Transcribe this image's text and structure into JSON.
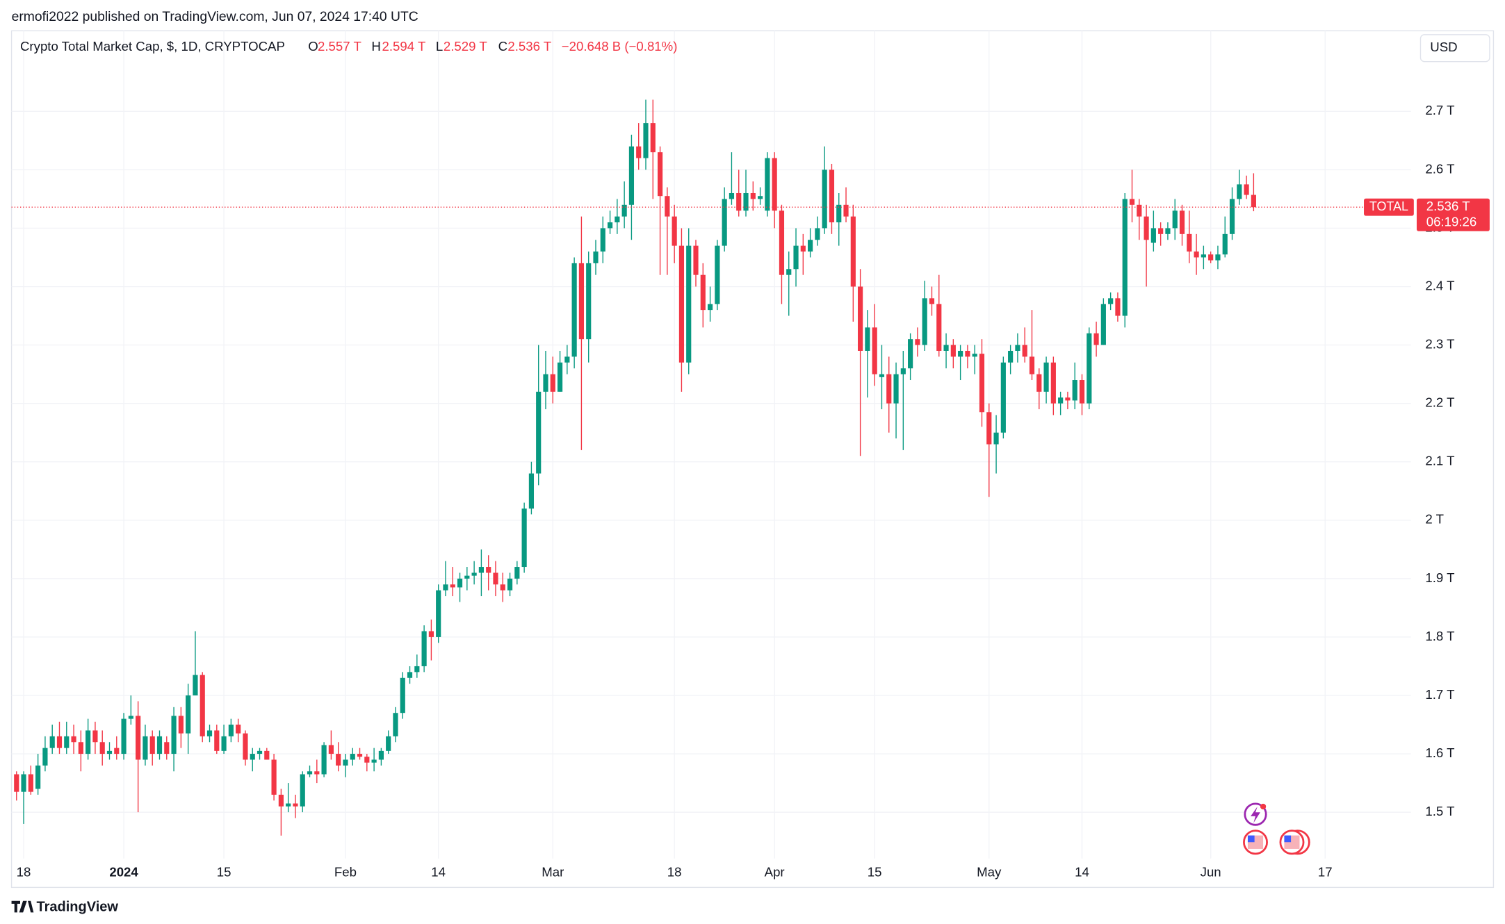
{
  "header": {
    "published": "ermofi2022 published on TradingView.com, Jun 07, 2024 17:40 UTC",
    "symbol": "Crypto Total Market Cap, $, 1D, CRYPTOCAP",
    "ohlc": [
      {
        "key": "O",
        "value": "2.557 T"
      },
      {
        "key": "H",
        "value": "2.594 T"
      },
      {
        "key": "L",
        "value": "2.529 T"
      },
      {
        "key": "C",
        "value": "2.536 T"
      }
    ],
    "change": "−20.648 B (−0.81%)",
    "currency": "USD"
  },
  "price_tag": {
    "name": "TOTAL",
    "price": "2.536 T",
    "countdown": "06:19:26"
  },
  "footer": {
    "brand": "TradingView"
  },
  "chart_data": {
    "type": "candlestick",
    "up_color": "#089981",
    "down_color": "#f23645",
    "grid": true,
    "categories": [
      "Dec 17",
      "Dec 18",
      "Dec 19",
      "Dec 20",
      "Dec 21",
      "Dec 22",
      "Dec 23",
      "Dec 24",
      "Dec 25",
      "Dec 26",
      "Dec 27",
      "Dec 28",
      "Dec 29",
      "Dec 30",
      "Dec 31",
      "Jan 1",
      "Jan 2",
      "Jan 3",
      "Jan 4",
      "Jan 5",
      "Jan 6",
      "Jan 7",
      "Jan 8",
      "Jan 9",
      "Jan 10",
      "Jan 11",
      "Jan 12",
      "Jan 13",
      "Jan 14",
      "Jan 15",
      "Jan 16",
      "Jan 17",
      "Jan 18",
      "Jan 19",
      "Jan 20",
      "Jan 21",
      "Jan 22",
      "Jan 23",
      "Jan 24",
      "Jan 25",
      "Jan 26",
      "Jan 27",
      "Jan 28",
      "Jan 29",
      "Jan 30",
      "Jan 31",
      "Feb 1",
      "Feb 2",
      "Feb 3",
      "Feb 4",
      "Feb 5",
      "Feb 6",
      "Feb 7",
      "Feb 8",
      "Feb 9",
      "Feb 10",
      "Feb 11",
      "Feb 12",
      "Feb 13",
      "Feb 14",
      "Feb 15",
      "Feb 16",
      "Feb 17",
      "Feb 18",
      "Feb 19",
      "Feb 20",
      "Feb 21",
      "Feb 22",
      "Feb 23",
      "Feb 24",
      "Feb 25",
      "Feb 26",
      "Feb 27",
      "Feb 28",
      "Feb 29",
      "Mar 1",
      "Mar 2",
      "Mar 3",
      "Mar 4",
      "Mar 5",
      "Mar 6",
      "Mar 7",
      "Mar 8",
      "Mar 9",
      "Mar 10",
      "Mar 11",
      "Mar 12",
      "Mar 13",
      "Mar 14",
      "Mar 15",
      "Mar 16",
      "Mar 17",
      "Mar 18",
      "Mar 19",
      "Mar 20",
      "Mar 21",
      "Mar 22",
      "Mar 23",
      "Mar 24",
      "Mar 25",
      "Mar 26",
      "Mar 27",
      "Mar 28",
      "Mar 29",
      "Mar 30",
      "Mar 31",
      "Apr 1",
      "Apr 2",
      "Apr 3",
      "Apr 4",
      "Apr 5",
      "Apr 6",
      "Apr 7",
      "Apr 8",
      "Apr 9",
      "Apr 10",
      "Apr 11",
      "Apr 12",
      "Apr 13",
      "Apr 14",
      "Apr 15",
      "Apr 16",
      "Apr 17",
      "Apr 18",
      "Apr 19",
      "Apr 20",
      "Apr 21",
      "Apr 22",
      "Apr 23",
      "Apr 24",
      "Apr 25",
      "Apr 26",
      "Apr 27",
      "Apr 28",
      "Apr 29",
      "Apr 30",
      "May 1",
      "May 2",
      "May 3",
      "May 4",
      "May 5",
      "May 6",
      "May 7",
      "May 8",
      "May 9",
      "May 10",
      "May 11",
      "May 12",
      "May 13",
      "May 14",
      "May 15",
      "May 16",
      "May 17",
      "May 18",
      "May 19",
      "May 20",
      "May 21",
      "May 22",
      "May 23",
      "May 24",
      "May 25",
      "May 26",
      "May 27",
      "May 28",
      "May 29",
      "May 30",
      "May 31",
      "Jun 1",
      "Jun 2",
      "Jun 3",
      "Jun 4",
      "Jun 5",
      "Jun 6",
      "Jun 7"
    ],
    "open": [
      1.565,
      1.535,
      1.565,
      1.54,
      1.58,
      1.61,
      1.63,
      1.61,
      1.63,
      1.62,
      1.6,
      1.64,
      1.62,
      1.6,
      1.61,
      1.6,
      1.66,
      1.665,
      1.59,
      1.63,
      1.6,
      1.62,
      1.6,
      1.665,
      1.635,
      1.7,
      1.735,
      1.63,
      1.64,
      1.605,
      1.63,
      1.65,
      1.635,
      1.59,
      1.6,
      1.605,
      1.59,
      1.53,
      1.51,
      1.515,
      1.51,
      1.565,
      1.57,
      1.565,
      1.615,
      1.6,
      1.58,
      1.59,
      1.6,
      1.595,
      1.585,
      1.59,
      1.605,
      1.63,
      1.67,
      1.73,
      1.74,
      1.75,
      1.81,
      1.8,
      1.88,
      1.89,
      1.885,
      1.9,
      1.905,
      1.91,
      1.92,
      1.91,
      1.89,
      1.88,
      1.9,
      1.92,
      2.02,
      2.08,
      2.22,
      2.25,
      2.22,
      2.27,
      2.28,
      2.44,
      2.31,
      2.44,
      2.46,
      2.5,
      2.51,
      2.52,
      2.54,
      2.64,
      2.62,
      2.68,
      2.63,
      2.555,
      2.52,
      2.47,
      2.27,
      2.47,
      2.42,
      2.36,
      2.37,
      2.47,
      2.55,
      2.56,
      2.53,
      2.56,
      2.55,
      2.53,
      2.62,
      2.53,
      2.42,
      2.43,
      2.47,
      2.46,
      2.48,
      2.5,
      2.6,
      2.51,
      2.54,
      2.52,
      2.4,
      2.29,
      2.33,
      2.245,
      2.25,
      2.2,
      2.25,
      2.26,
      2.31,
      2.3,
      2.38,
      2.37,
      2.29,
      2.3,
      2.28,
      2.29,
      2.28,
      2.285,
      2.185,
      2.13,
      2.15,
      2.27,
      2.29,
      2.3,
      2.28,
      2.25,
      2.22,
      2.27,
      2.2,
      2.21,
      2.205,
      2.24,
      2.2,
      2.32,
      2.3,
      2.37,
      2.38,
      2.35,
      2.55,
      2.54,
      2.52,
      2.475,
      2.5,
      2.49,
      2.5,
      2.53,
      2.49,
      2.46,
      2.45,
      2.455,
      2.445,
      2.455,
      2.49,
      2.55,
      2.575,
      2.557
    ],
    "high": [
      1.57,
      1.57,
      1.58,
      1.6,
      1.63,
      1.65,
      1.655,
      1.655,
      1.65,
      1.64,
      1.66,
      1.655,
      1.64,
      1.62,
      1.63,
      1.67,
      1.7,
      1.69,
      1.65,
      1.64,
      1.64,
      1.63,
      1.68,
      1.68,
      1.72,
      1.81,
      1.74,
      1.65,
      1.65,
      1.65,
      1.66,
      1.66,
      1.64,
      1.61,
      1.61,
      1.61,
      1.6,
      1.54,
      1.55,
      1.53,
      1.57,
      1.58,
      1.59,
      1.62,
      1.64,
      1.62,
      1.6,
      1.61,
      1.61,
      1.6,
      1.61,
      1.61,
      1.64,
      1.68,
      1.74,
      1.75,
      1.77,
      1.82,
      1.83,
      1.89,
      1.93,
      1.92,
      1.91,
      1.92,
      1.93,
      1.95,
      1.94,
      1.93,
      1.91,
      1.91,
      1.93,
      2.03,
      2.1,
      2.3,
      2.29,
      2.28,
      2.29,
      2.3,
      2.45,
      2.52,
      2.46,
      2.48,
      2.52,
      2.53,
      2.55,
      2.58,
      2.66,
      2.68,
      2.72,
      2.72,
      2.64,
      2.57,
      2.54,
      2.5,
      2.5,
      2.48,
      2.44,
      2.4,
      2.48,
      2.57,
      2.63,
      2.6,
      2.6,
      2.58,
      2.57,
      2.63,
      2.63,
      2.54,
      2.46,
      2.5,
      2.49,
      2.5,
      2.52,
      2.64,
      2.61,
      2.56,
      2.57,
      2.54,
      2.43,
      2.36,
      2.37,
      2.3,
      2.28,
      2.27,
      2.29,
      2.32,
      2.33,
      2.41,
      2.4,
      2.42,
      2.32,
      2.31,
      2.3,
      2.3,
      2.3,
      2.31,
      2.2,
      2.18,
      2.28,
      2.3,
      2.32,
      2.33,
      2.36,
      2.26,
      2.28,
      2.28,
      2.22,
      2.22,
      2.27,
      2.25,
      2.33,
      2.34,
      2.38,
      2.39,
      2.39,
      2.56,
      2.6,
      2.55,
      2.54,
      2.53,
      2.51,
      2.51,
      2.55,
      2.54,
      2.53,
      2.49,
      2.47,
      2.46,
      2.47,
      2.52,
      2.57,
      2.6,
      2.59,
      2.594
    ],
    "low": [
      1.52,
      1.48,
      1.53,
      1.53,
      1.57,
      1.6,
      1.6,
      1.6,
      1.6,
      1.57,
      1.59,
      1.6,
      1.58,
      1.59,
      1.59,
      1.59,
      1.65,
      1.5,
      1.58,
      1.58,
      1.59,
      1.59,
      1.57,
      1.61,
      1.6,
      1.7,
      1.62,
      1.62,
      1.6,
      1.6,
      1.62,
      1.62,
      1.58,
      1.57,
      1.59,
      1.59,
      1.52,
      1.46,
      1.5,
      1.49,
      1.5,
      1.56,
      1.55,
      1.56,
      1.59,
      1.57,
      1.56,
      1.58,
      1.59,
      1.57,
      1.57,
      1.58,
      1.6,
      1.62,
      1.66,
      1.72,
      1.73,
      1.74,
      1.76,
      1.79,
      1.87,
      1.87,
      1.86,
      1.88,
      1.89,
      1.87,
      1.88,
      1.87,
      1.86,
      1.87,
      1.89,
      1.91,
      2.01,
      2.06,
      2.19,
      2.2,
      2.22,
      2.25,
      2.26,
      2.12,
      2.27,
      2.42,
      2.44,
      2.49,
      2.49,
      2.5,
      2.48,
      2.6,
      2.6,
      2.55,
      2.42,
      2.42,
      2.44,
      2.22,
      2.25,
      2.4,
      2.33,
      2.34,
      2.36,
      2.46,
      2.54,
      2.52,
      2.52,
      2.53,
      2.54,
      2.52,
      2.5,
      2.37,
      2.35,
      2.4,
      2.42,
      2.45,
      2.47,
      2.49,
      2.49,
      2.47,
      2.51,
      2.34,
      2.11,
      2.21,
      2.23,
      2.19,
      2.15,
      2.14,
      2.12,
      2.24,
      2.28,
      2.29,
      2.35,
      2.28,
      2.26,
      2.26,
      2.24,
      2.26,
      2.25,
      2.16,
      2.04,
      2.08,
      2.14,
      2.25,
      2.27,
      2.27,
      2.24,
      2.19,
      2.2,
      2.18,
      2.18,
      2.19,
      2.19,
      2.18,
      2.19,
      2.28,
      2.3,
      2.36,
      2.34,
      2.33,
      2.51,
      2.48,
      2.4,
      2.46,
      2.47,
      2.48,
      2.48,
      2.47,
      2.44,
      2.42,
      2.43,
      2.44,
      2.43,
      2.45,
      2.48,
      2.54,
      2.55,
      2.529
    ],
    "close": [
      1.535,
      1.565,
      1.535,
      1.58,
      1.61,
      1.63,
      1.61,
      1.63,
      1.62,
      1.6,
      1.64,
      1.62,
      1.6,
      1.605,
      1.6,
      1.66,
      1.665,
      1.59,
      1.63,
      1.6,
      1.63,
      1.6,
      1.665,
      1.635,
      1.7,
      1.735,
      1.63,
      1.64,
      1.605,
      1.63,
      1.65,
      1.635,
      1.59,
      1.6,
      1.605,
      1.59,
      1.53,
      1.51,
      1.515,
      1.51,
      1.565,
      1.57,
      1.565,
      1.615,
      1.6,
      1.58,
      1.59,
      1.6,
      1.595,
      1.585,
      1.59,
      1.605,
      1.63,
      1.67,
      1.73,
      1.74,
      1.75,
      1.81,
      1.8,
      1.88,
      1.89,
      1.885,
      1.9,
      1.905,
      1.91,
      1.92,
      1.91,
      1.89,
      1.88,
      1.9,
      1.92,
      2.02,
      2.08,
      2.22,
      2.25,
      2.22,
      2.27,
      2.28,
      2.44,
      2.31,
      2.44,
      2.46,
      2.5,
      2.51,
      2.52,
      2.54,
      2.64,
      2.62,
      2.68,
      2.63,
      2.555,
      2.52,
      2.47,
      2.27,
      2.47,
      2.42,
      2.36,
      2.37,
      2.47,
      2.55,
      2.56,
      2.53,
      2.56,
      2.55,
      2.555,
      2.62,
      2.53,
      2.42,
      2.43,
      2.47,
      2.46,
      2.48,
      2.5,
      2.6,
      2.51,
      2.54,
      2.52,
      2.4,
      2.29,
      2.33,
      2.25,
      2.25,
      2.2,
      2.25,
      2.26,
      2.31,
      2.3,
      2.38,
      2.37,
      2.29,
      2.3,
      2.28,
      2.29,
      2.28,
      2.285,
      2.185,
      2.13,
      2.15,
      2.27,
      2.29,
      2.3,
      2.28,
      2.25,
      2.22,
      2.27,
      2.2,
      2.21,
      2.205,
      2.24,
      2.2,
      2.32,
      2.3,
      2.37,
      2.38,
      2.35,
      2.55,
      2.54,
      2.52,
      2.48,
      2.5,
      2.49,
      2.5,
      2.53,
      2.49,
      2.46,
      2.45,
      2.455,
      2.445,
      2.455,
      2.49,
      2.55,
      2.575,
      2.557,
      2.536
    ],
    "xlim": [
      -0.7,
      195
    ],
    "xticks": [
      {
        "value": 1,
        "label": "18"
      },
      {
        "value": 15,
        "label": "2024"
      },
      {
        "value": 29,
        "label": "15"
      },
      {
        "value": 46,
        "label": "Feb"
      },
      {
        "value": 59,
        "label": "14"
      },
      {
        "value": 75,
        "label": "Mar"
      },
      {
        "value": 92,
        "label": "18"
      },
      {
        "value": 106,
        "label": "Apr"
      },
      {
        "value": 120,
        "label": "15"
      },
      {
        "value": 136,
        "label": "May"
      },
      {
        "value": 149,
        "label": "14"
      },
      {
        "value": 167,
        "label": "Jun"
      },
      {
        "value": 183,
        "label": "17"
      }
    ],
    "ylim": [
      1.424,
      2.833
    ],
    "yticks": [
      {
        "value": 1.5,
        "label": "1.5 T"
      },
      {
        "value": 1.6,
        "label": "1.6 T"
      },
      {
        "value": 1.7,
        "label": "1.7 T"
      },
      {
        "value": 1.8,
        "label": "1.8 T"
      },
      {
        "value": 1.9,
        "label": "1.9 T"
      },
      {
        "value": 2,
        "label": "2 T"
      },
      {
        "value": 2.1,
        "label": "2.1 T"
      },
      {
        "value": 2.2,
        "label": "2.2 T"
      },
      {
        "value": 2.3,
        "label": "2.3 T"
      },
      {
        "value": 2.4,
        "label": "2.4 T"
      },
      {
        "value": 2.5,
        "label": "2.5 T"
      },
      {
        "value": 2.6,
        "label": "2.6 T"
      },
      {
        "value": 2.7,
        "label": "2.7 T"
      }
    ]
  }
}
